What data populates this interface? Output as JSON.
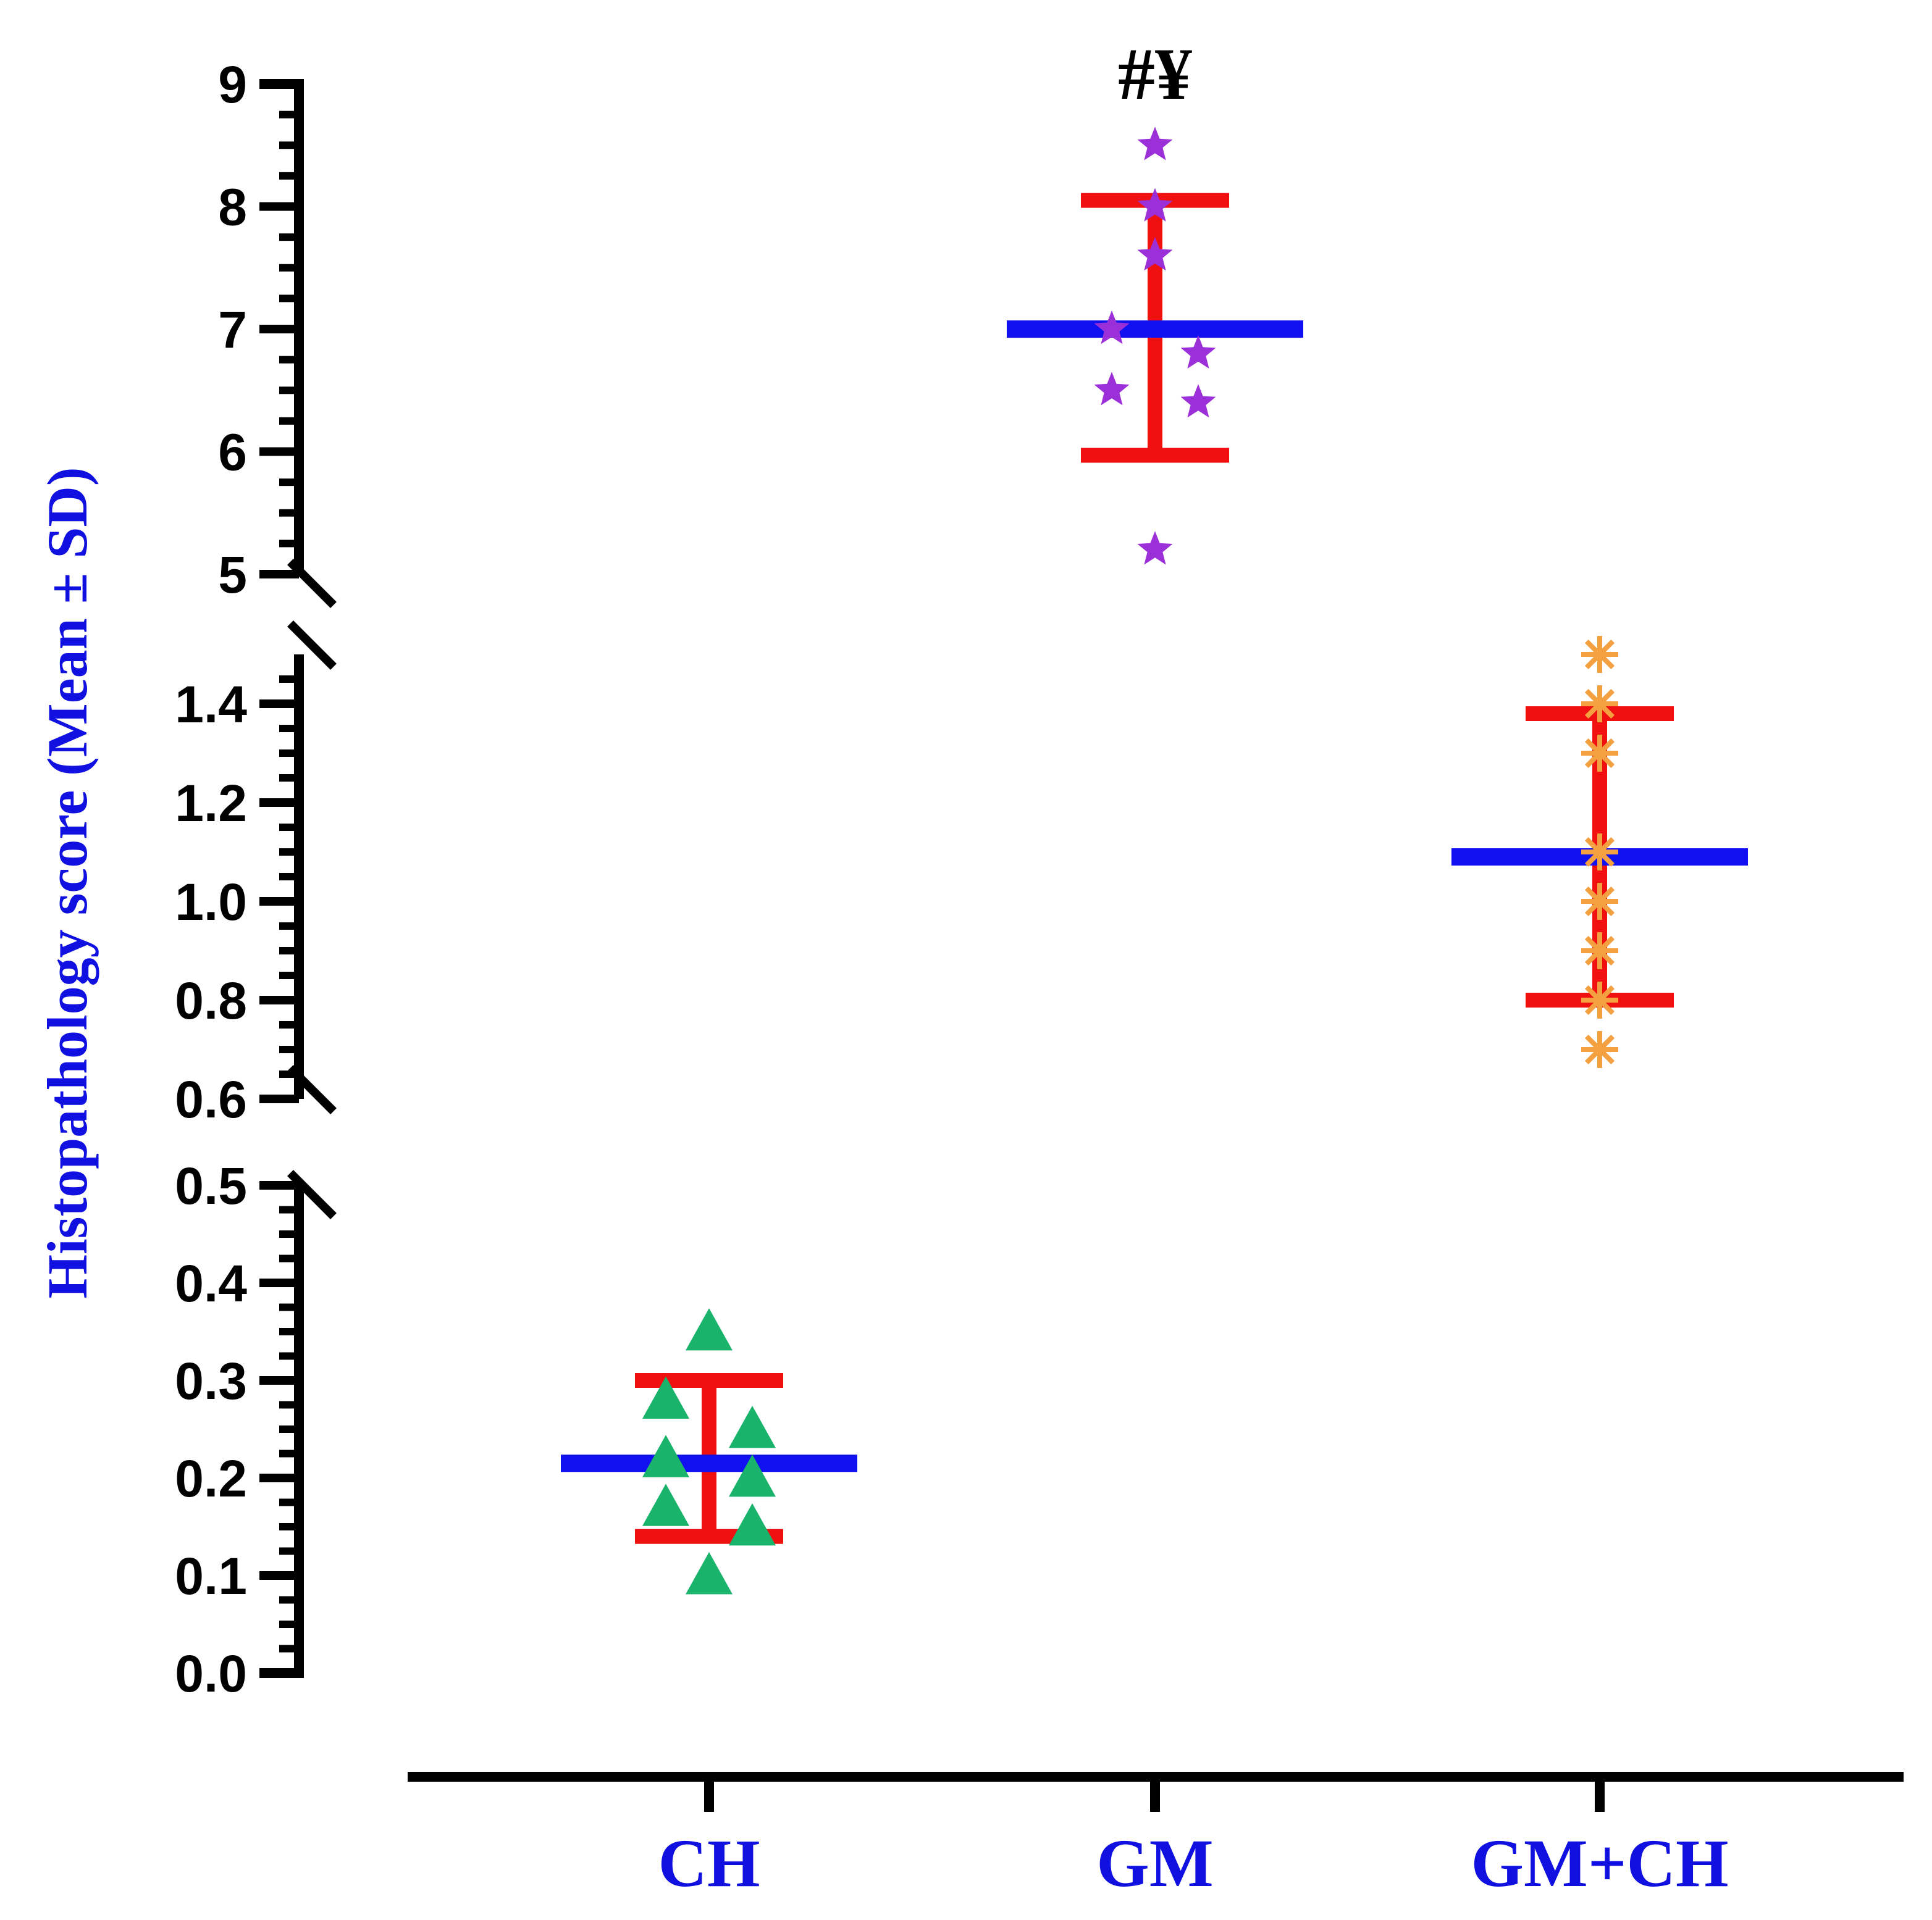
{
  "chart_data": {
    "type": "scatter",
    "title": "",
    "xlabel": "",
    "ylabel": "Histopathology score (Mean ± SD)",
    "categories": [
      "CH",
      "GM",
      "GM+CH"
    ],
    "y_segments": [
      {
        "range": [
          0.0,
          0.5
        ],
        "ticks": [
          "0.0",
          "0.1",
          "0.2",
          "0.3",
          "0.4",
          "0.5"
        ]
      },
      {
        "range": [
          0.6,
          1.5
        ],
        "ticks": [
          "0.6",
          "0.8",
          "1.0",
          "1.2",
          "1.4"
        ]
      },
      {
        "range": [
          5,
          9
        ],
        "ticks": [
          "5",
          "6",
          "7",
          "8",
          "9"
        ]
      }
    ],
    "axis_break": true,
    "groups": [
      {
        "name": "CH",
        "marker": "triangle",
        "marker_color": "#19b36b",
        "points": [
          0.35,
          0.28,
          0.25,
          0.22,
          0.2,
          0.17,
          0.15,
          0.1
        ],
        "mean": 0.215,
        "sd_low": 0.14,
        "sd_high": 0.3
      },
      {
        "name": "GM",
        "marker": "star",
        "marker_color": "#9b30d9",
        "points": [
          8.5,
          8.0,
          7.6,
          7.0,
          6.8,
          6.5,
          6.4,
          5.2
        ],
        "mean": 7.0,
        "sd_low": 5.97,
        "sd_high": 8.05
      },
      {
        "name": "GM+CH",
        "marker": "asterisk",
        "marker_color": "#f5a040",
        "points": [
          1.5,
          1.4,
          1.3,
          1.1,
          1.0,
          0.9,
          0.8,
          0.7
        ],
        "mean": 1.09,
        "sd_low": 0.8,
        "sd_high": 1.38
      }
    ],
    "mean_line_color": "#1010f0",
    "sd_color": "#f01010",
    "annotations": [
      {
        "group": "GM",
        "text": "#¥"
      }
    ],
    "legend": "none",
    "grid": false
  },
  "colors": {
    "axis": "#000000",
    "category_label": "#1010e0",
    "ylabel": "#1010e0"
  }
}
